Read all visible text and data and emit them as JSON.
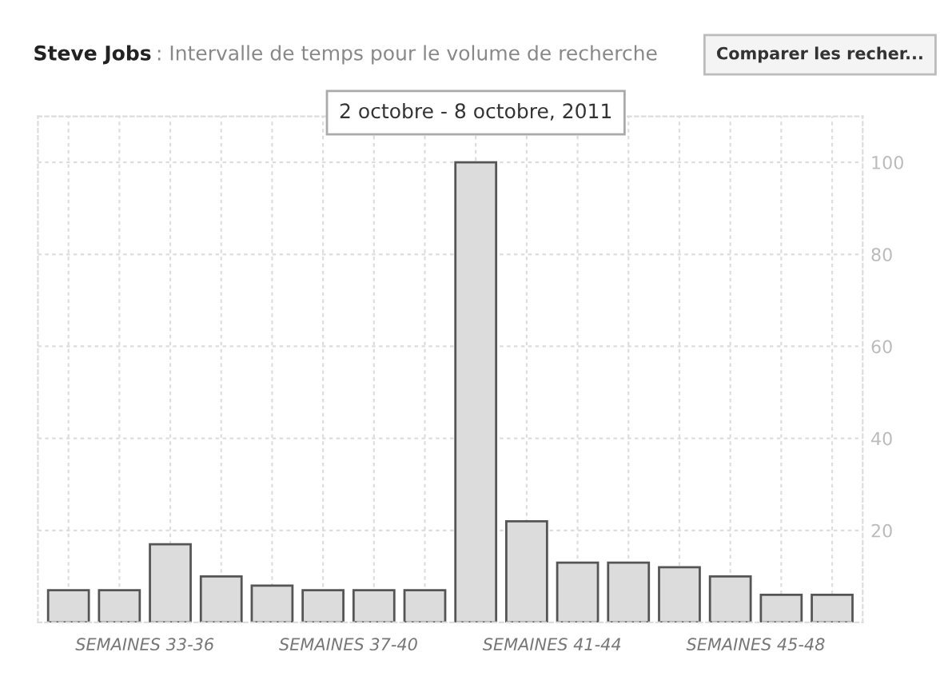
{
  "chart_data": {
    "type": "bar",
    "title": "Steve Jobs",
    "subtitle": ": Intervalle de temps pour le volume de recherche",
    "categories": [
      null,
      null,
      null,
      null,
      null,
      null,
      null,
      null,
      null,
      null,
      null,
      null,
      null,
      null,
      null,
      null
    ],
    "values": [
      7,
      7,
      17,
      10,
      8,
      7,
      7,
      7,
      100,
      22,
      13,
      13,
      12,
      10,
      6,
      6
    ],
    "color": "#dcdcdc",
    "ylim": [
      0,
      110
    ],
    "yticks": [
      20,
      40,
      60,
      80,
      100
    ],
    "grid": true,
    "annotations": [
      "SEMAINES 33-36",
      "SEMAINES 37-40",
      "SEMAINES 41-44",
      "SEMAINES 45-48",
      "2 octobre - 8 octobre, 2011",
      "Comparer les recher..."
    ]
  }
}
